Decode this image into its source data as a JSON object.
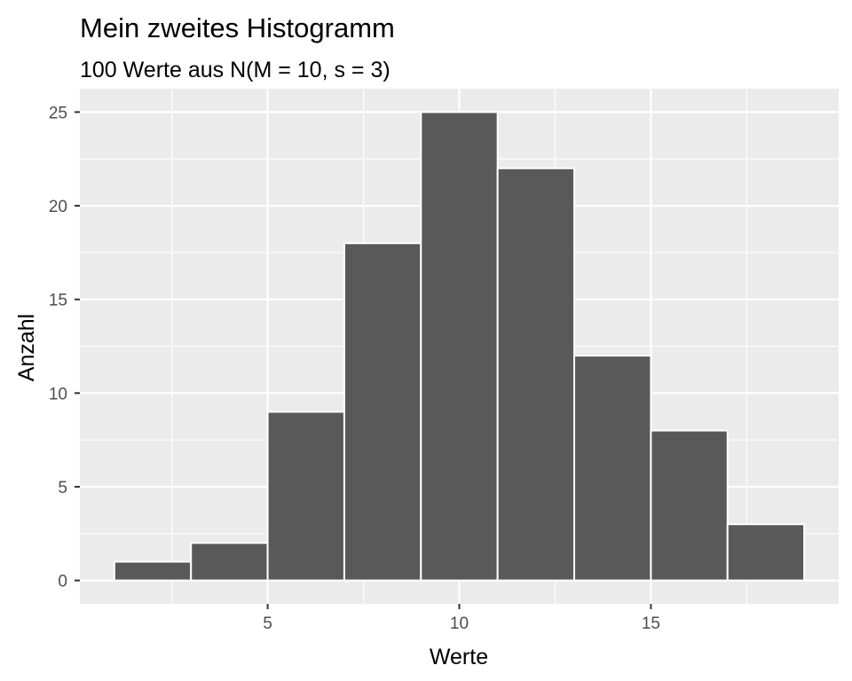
{
  "chart_data": {
    "type": "bar",
    "title": "Mein zweites Histogramm",
    "subtitle": "100 Werte aus N(M = 10, s = 3)",
    "xlabel": "Werte",
    "ylabel": "Anzahl",
    "bin_width": 2,
    "bins": [
      {
        "x_min": 1,
        "x_max": 3,
        "count": 1
      },
      {
        "x_min": 3,
        "x_max": 5,
        "count": 2
      },
      {
        "x_min": 5,
        "x_max": 7,
        "count": 9
      },
      {
        "x_min": 7,
        "x_max": 9,
        "count": 18
      },
      {
        "x_min": 9,
        "x_max": 11,
        "count": 25
      },
      {
        "x_min": 11,
        "x_max": 13,
        "count": 22
      },
      {
        "x_min": 13,
        "x_max": 15,
        "count": 12
      },
      {
        "x_min": 15,
        "x_max": 17,
        "count": 8
      },
      {
        "x_min": 17,
        "x_max": 19,
        "count": 3
      }
    ],
    "xlim": [
      0.1,
      19.9
    ],
    "ylim": [
      -1.25,
      26.25
    ],
    "x_ticks": [
      5,
      10,
      15
    ],
    "x_minor_ticks": [
      2.5,
      7.5,
      12.5,
      17.5
    ],
    "y_ticks": [
      0,
      5,
      10,
      15,
      20,
      25
    ],
    "y_minor_ticks": [
      2.5,
      7.5,
      12.5,
      17.5,
      22.5
    ],
    "grid": true,
    "colors": {
      "panel_background": "#ebebeb",
      "grid_line": "#ffffff",
      "bar_fill": "#595959",
      "bar_outline": "#ffffff",
      "tick_text": "#4d4d4d",
      "tick_mark": "#333333"
    }
  }
}
